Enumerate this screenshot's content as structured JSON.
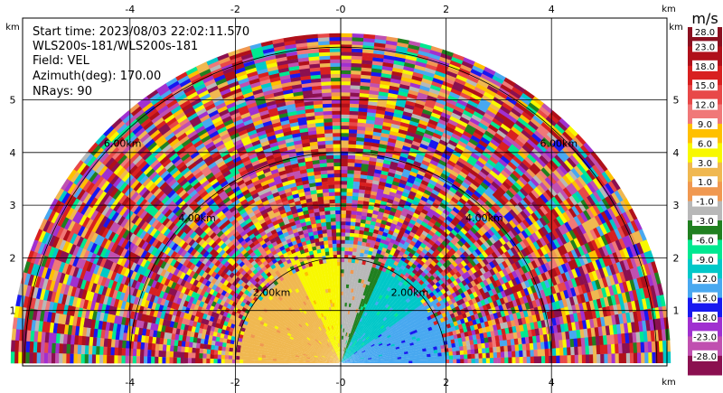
{
  "info_lines": [
    "Start time: 2023/08/03 22:02:11.570",
    "WLS200s-181/WLS200s-181",
    "Field: VEL",
    "Azimuth(deg): 170.00",
    "NRays: 90"
  ],
  "range_ring_labels": [
    "2.00km",
    "2.00km",
    "4.00km",
    "4.00km",
    "6.00km",
    "6.00km"
  ],
  "colorbar": {
    "unit": "m/s",
    "tick_labels": [
      "28.0",
      "23.0",
      "18.0",
      "15.0",
      "12.0",
      "9.0",
      "6.0",
      "3.0",
      "1.0",
      "-1.0",
      "-3.0",
      "-6.0",
      "-9.0",
      "-12.0",
      "-15.0",
      "-18.0",
      "-23.0",
      "-28.0"
    ],
    "colors": [
      "#8b1020",
      "#b0101a",
      "#d82020",
      "#e84848",
      "#f07878",
      "#ffc000",
      "#f8f800",
      "#f0b850",
      "#f09850",
      "#b8b8b8",
      "#208020",
      "#00e890",
      "#00c8c8",
      "#48a8f0",
      "#1818f0",
      "#a030d0",
      "#c050b0",
      "#8b1050"
    ]
  },
  "chart_data": {
    "type": "heatmap",
    "projection": "RHI polar sector (upper half-plane)",
    "field": "VEL",
    "units": "m/s",
    "x_unit": "km",
    "y_unit": "km",
    "xlim": [
      -6.3,
      6.3
    ],
    "ylim": [
      0,
      5.6
    ],
    "x_ticks": [
      -4,
      -2,
      0,
      2,
      4
    ],
    "x_tick_labels": [
      "-4",
      "-2",
      "-0",
      "2",
      "4"
    ],
    "y_ticks": [
      1,
      2,
      3,
      4,
      5
    ],
    "y_tick_labels": [
      "1",
      "2",
      "3",
      "4",
      "5"
    ],
    "range_rings_km": [
      2,
      4,
      6
    ],
    "max_range_km": 6.2,
    "nrays": 90,
    "vlim": [
      -28,
      28
    ],
    "color_bounds": [
      -28,
      -23,
      -18,
      -15,
      -12,
      -9,
      -6,
      -3,
      -1,
      1,
      3,
      6,
      9,
      12,
      15,
      18,
      23,
      28
    ],
    "grid": true,
    "near_range_structure": [
      {
        "region": "left, within ~2 km",
        "value_ms": 4.5
      },
      {
        "region": "centre-left, within ~2 km",
        "value_ms": 7.5
      },
      {
        "region": "near vertical, within ~2.2 km",
        "value_ms": -0.3
      },
      {
        "region": "right edge of gray band",
        "value_ms": -2.0
      },
      {
        "region": "right, within ~2 km",
        "value_ms": -7.5
      },
      {
        "region": "far right, within ~1.5 km",
        "value_ms": -11.0
      }
    ],
    "far_range": "noisy speckle spanning full color range"
  }
}
